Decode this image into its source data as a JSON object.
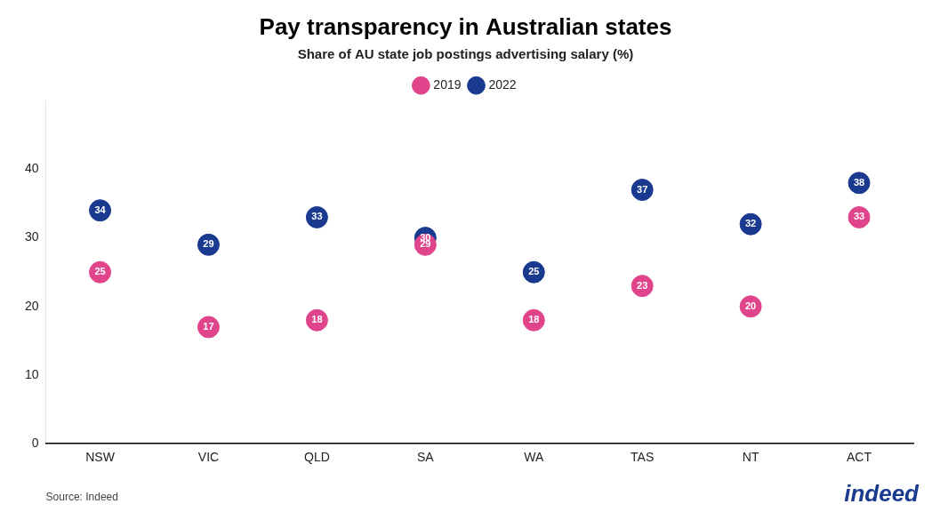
{
  "chart_data": {
    "type": "scatter",
    "title": "Pay transparency in Australian states",
    "subtitle": "Share of AU state job postings advertising salary (%)",
    "categories": [
      "NSW",
      "VIC",
      "QLD",
      "SA",
      "WA",
      "TAS",
      "NT",
      "ACT"
    ],
    "series": [
      {
        "name": "2019",
        "color": "#e0458b",
        "values": [
          25,
          17,
          18,
          29,
          18,
          23,
          20,
          33
        ]
      },
      {
        "name": "2022",
        "color": "#1a3a8f",
        "values": [
          34,
          29,
          33,
          30,
          25,
          37,
          32,
          38
        ]
      }
    ],
    "ylim": [
      0,
      50
    ],
    "yticks": [
      0,
      10,
      20,
      30,
      40
    ],
    "grid": false,
    "legend": "top",
    "data_labels": true,
    "annotations": [
      "Source: Indeed",
      "indeed"
    ]
  }
}
